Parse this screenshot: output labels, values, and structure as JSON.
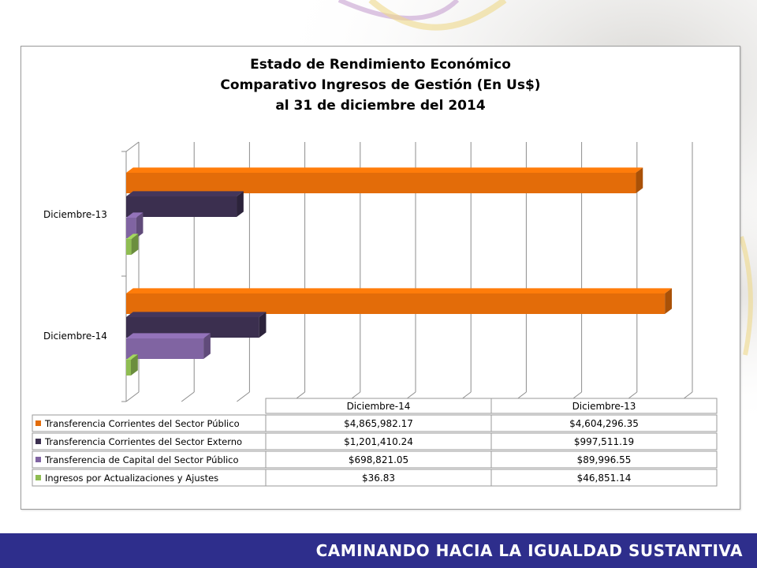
{
  "footer": {
    "text": "CAMINANDO HACIA LA IGUALDAD SUSTANTIVA"
  },
  "colors": {
    "footer_bg": "#2e2e8c",
    "series1": "#e36c09",
    "series2": "#3b2f4f",
    "series3": "#8064a2",
    "series4": "#8fbd52"
  },
  "chart_data": {
    "type": "bar",
    "orientation": "horizontal",
    "style": "3d-clustered-bar",
    "title": "Estado de Rendimiento Económico\nComparativo Ingresos de Gestión (En Us$)\nal 31 de diciembre del 2014",
    "categories": [
      "Diciembre-13",
      "Diciembre-14"
    ],
    "series": [
      {
        "name": "Transferencia Corrientes del Sector Público",
        "color": "#e36c09",
        "values": [
          4604296.35,
          4865982.17
        ]
      },
      {
        "name": "Transferencia Corrientes del Sector Externo",
        "color": "#3b2f4f",
        "values": [
          997511.19,
          1201410.24
        ]
      },
      {
        "name": "Transferencia de Capital del Sector Público",
        "color": "#8064a2",
        "values": [
          89996.55,
          698821.05
        ]
      },
      {
        "name": "Ingresos por Actualizaciones y Ajustes",
        "color": "#8fbd52",
        "values": [
          46851.14,
          36.83
        ]
      }
    ],
    "xlim": [
      0,
      5000000
    ],
    "grid": true,
    "legend": "data-table-below",
    "data_table": {
      "headers": [
        "Diciembre-14",
        "Diciembre-13"
      ],
      "rows": [
        [
          "$4,865,982.17",
          "$4,604,296.35"
        ],
        [
          "$1,201,410.24",
          "$997,511.19"
        ],
        [
          "$698,821.05",
          "$89,996.55"
        ],
        [
          "$36.83",
          "$46,851.14"
        ]
      ]
    }
  }
}
